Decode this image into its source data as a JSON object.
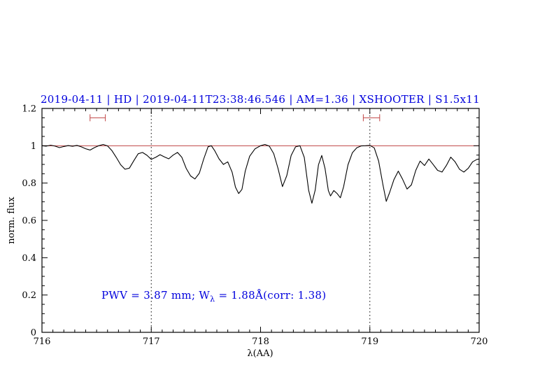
{
  "chart_data": {
    "type": "line",
    "title": "2019-04-11 | HD | 2019-04-11T23:38:46.546 | AM=1.36 | XSHOOTER | S1.5x11",
    "xlabel": "λ(AA)",
    "ylabel": "norm. flux",
    "xlim": [
      716,
      720
    ],
    "ylim": [
      0,
      1.2
    ],
    "grid": false,
    "legend": false,
    "x_ticks": {
      "values": [
        716,
        717,
        718,
        719,
        720
      ],
      "labels": [
        "716",
        "717",
        "718",
        "719",
        "720"
      ],
      "minor_step": 0.1
    },
    "y_ticks": {
      "values": [
        0,
        0.2,
        0.4,
        0.6,
        0.8,
        1,
        1.2
      ],
      "labels": [
        "0",
        "0.2",
        "0.4",
        "0.6",
        "0.8",
        "1",
        "1.2"
      ],
      "minor_step": 0.05
    },
    "guide_lines_x": [
      717,
      719
    ],
    "continuum_y": 1.0,
    "range_markers": [
      {
        "x1": 716.44,
        "x2": 716.58,
        "y": 1.15
      },
      {
        "x1": 718.94,
        "x2": 719.09,
        "y": 1.15
      }
    ],
    "annotation": {
      "prefix": "PWV = 3.87 mm; W",
      "subscript": "λ",
      "suffix": " = 1.88Å(corr: 1.38)"
    },
    "colors": {
      "spectrum": "#000000",
      "continuum": "#c04545",
      "markers": "#c04545",
      "title": "#0000dd",
      "annotation": "#0000dd",
      "frame": "#000000"
    },
    "series": [
      {
        "name": "spectrum",
        "points": [
          [
            716.0,
            1.0
          ],
          [
            716.04,
            0.998
          ],
          [
            716.08,
            1.003
          ],
          [
            716.12,
            0.998
          ],
          [
            716.16,
            0.99
          ],
          [
            716.2,
            0.996
          ],
          [
            716.24,
            1.001
          ],
          [
            716.28,
            0.997
          ],
          [
            716.32,
            1.002
          ],
          [
            716.36,
            0.994
          ],
          [
            716.4,
            0.984
          ],
          [
            716.44,
            0.977
          ],
          [
            716.48,
            0.99
          ],
          [
            716.52,
            1.0
          ],
          [
            716.56,
            1.007
          ],
          [
            716.6,
            0.999
          ],
          [
            716.64,
            0.974
          ],
          [
            716.68,
            0.938
          ],
          [
            716.72,
            0.898
          ],
          [
            716.76,
            0.874
          ],
          [
            716.8,
            0.88
          ],
          [
            716.84,
            0.92
          ],
          [
            716.88,
            0.957
          ],
          [
            716.92,
            0.964
          ],
          [
            716.96,
            0.949
          ],
          [
            717.0,
            0.927
          ],
          [
            717.04,
            0.938
          ],
          [
            717.08,
            0.952
          ],
          [
            717.12,
            0.94
          ],
          [
            717.16,
            0.93
          ],
          [
            717.2,
            0.95
          ],
          [
            717.24,
            0.964
          ],
          [
            717.28,
            0.938
          ],
          [
            717.32,
            0.878
          ],
          [
            717.36,
            0.838
          ],
          [
            717.4,
            0.822
          ],
          [
            717.44,
            0.853
          ],
          [
            717.48,
            0.93
          ],
          [
            717.52,
            0.995
          ],
          [
            717.55,
            1.0
          ],
          [
            717.58,
            0.974
          ],
          [
            717.62,
            0.93
          ],
          [
            717.66,
            0.9
          ],
          [
            717.7,
            0.914
          ],
          [
            717.74,
            0.858
          ],
          [
            717.77,
            0.778
          ],
          [
            717.8,
            0.744
          ],
          [
            717.83,
            0.766
          ],
          [
            717.86,
            0.864
          ],
          [
            717.9,
            0.944
          ],
          [
            717.95,
            0.984
          ],
          [
            718.0,
            1.0
          ],
          [
            718.04,
            1.007
          ],
          [
            718.08,
            0.998
          ],
          [
            718.12,
            0.958
          ],
          [
            718.16,
            0.878
          ],
          [
            718.2,
            0.781
          ],
          [
            718.24,
            0.84
          ],
          [
            718.28,
            0.948
          ],
          [
            718.32,
            0.994
          ],
          [
            718.36,
            1.0
          ],
          [
            718.4,
            0.938
          ],
          [
            718.44,
            0.76
          ],
          [
            718.47,
            0.692
          ],
          [
            718.5,
            0.762
          ],
          [
            718.53,
            0.898
          ],
          [
            718.56,
            0.948
          ],
          [
            718.59,
            0.878
          ],
          [
            718.62,
            0.76
          ],
          [
            718.64,
            0.731
          ],
          [
            718.67,
            0.76
          ],
          [
            718.7,
            0.744
          ],
          [
            718.73,
            0.721
          ],
          [
            718.76,
            0.78
          ],
          [
            718.8,
            0.898
          ],
          [
            718.84,
            0.963
          ],
          [
            718.88,
            0.989
          ],
          [
            718.92,
            0.999
          ],
          [
            718.96,
            1.0
          ],
          [
            719.0,
            1.002
          ],
          [
            719.04,
            0.989
          ],
          [
            719.08,
            0.918
          ],
          [
            719.12,
            0.79
          ],
          [
            719.15,
            0.702
          ],
          [
            719.18,
            0.748
          ],
          [
            719.22,
            0.818
          ],
          [
            719.26,
            0.864
          ],
          [
            719.3,
            0.82
          ],
          [
            719.34,
            0.768
          ],
          [
            719.38,
            0.79
          ],
          [
            719.42,
            0.868
          ],
          [
            719.46,
            0.918
          ],
          [
            719.5,
            0.894
          ],
          [
            719.54,
            0.929
          ],
          [
            719.58,
            0.899
          ],
          [
            719.62,
            0.868
          ],
          [
            719.66,
            0.859
          ],
          [
            719.7,
            0.894
          ],
          [
            719.74,
            0.939
          ],
          [
            719.78,
            0.914
          ],
          [
            719.82,
            0.874
          ],
          [
            719.86,
            0.859
          ],
          [
            719.9,
            0.879
          ],
          [
            719.94,
            0.914
          ],
          [
            719.98,
            0.927
          ],
          [
            720.0,
            0.929
          ]
        ]
      }
    ]
  }
}
